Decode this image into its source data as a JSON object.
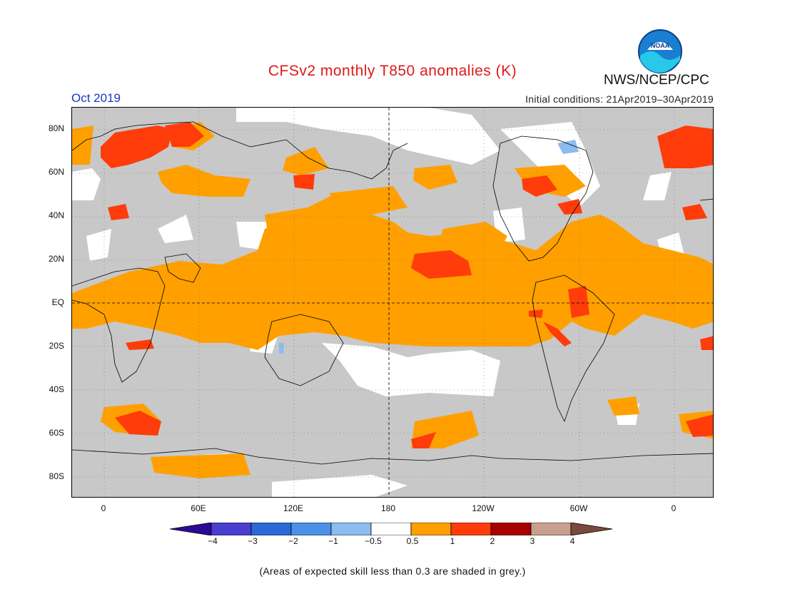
{
  "header": {
    "title": "CFSv2 monthly T850 anomalies (K)",
    "agency": "NWS/NCEP/CPC",
    "logo_text": "NOAA",
    "month": "Oct 2019",
    "initial_conditions": "Initial conditions: 21Apr2019–30Apr2019"
  },
  "axes": {
    "lat_labels": [
      "80N",
      "60N",
      "40N",
      "20N",
      "EQ",
      "20S",
      "40S",
      "60S",
      "80S"
    ],
    "lon_labels": [
      "0",
      "60E",
      "120E",
      "180",
      "120W",
      "60W",
      "0"
    ]
  },
  "colorbar": {
    "tick_labels": [
      "−4",
      "−3",
      "−2",
      "−1",
      "−0.5",
      "0.5",
      "1",
      "2",
      "3",
      "4"
    ],
    "colors": [
      "#2d0a96",
      "#4a3ed0",
      "#2a6ad8",
      "#4b92e6",
      "#8cbcf0",
      "#ffffff",
      "#ffa000",
      "#ff3c0a",
      "#a80000",
      "#c8a090",
      "#7a4a3a"
    ]
  },
  "legend_colors": {
    "low_skill": "#c8c8c8",
    "near_zero": "#ffffff",
    "warm_0_5_to_1": "#ffa000",
    "warm_1_to_2": "#ff3c0a",
    "cool_minus_1_to_minus_0_5": "#8cbcf0"
  },
  "footnote": "(Areas of expected skill less than 0.3 are shaded in grey.)"
}
